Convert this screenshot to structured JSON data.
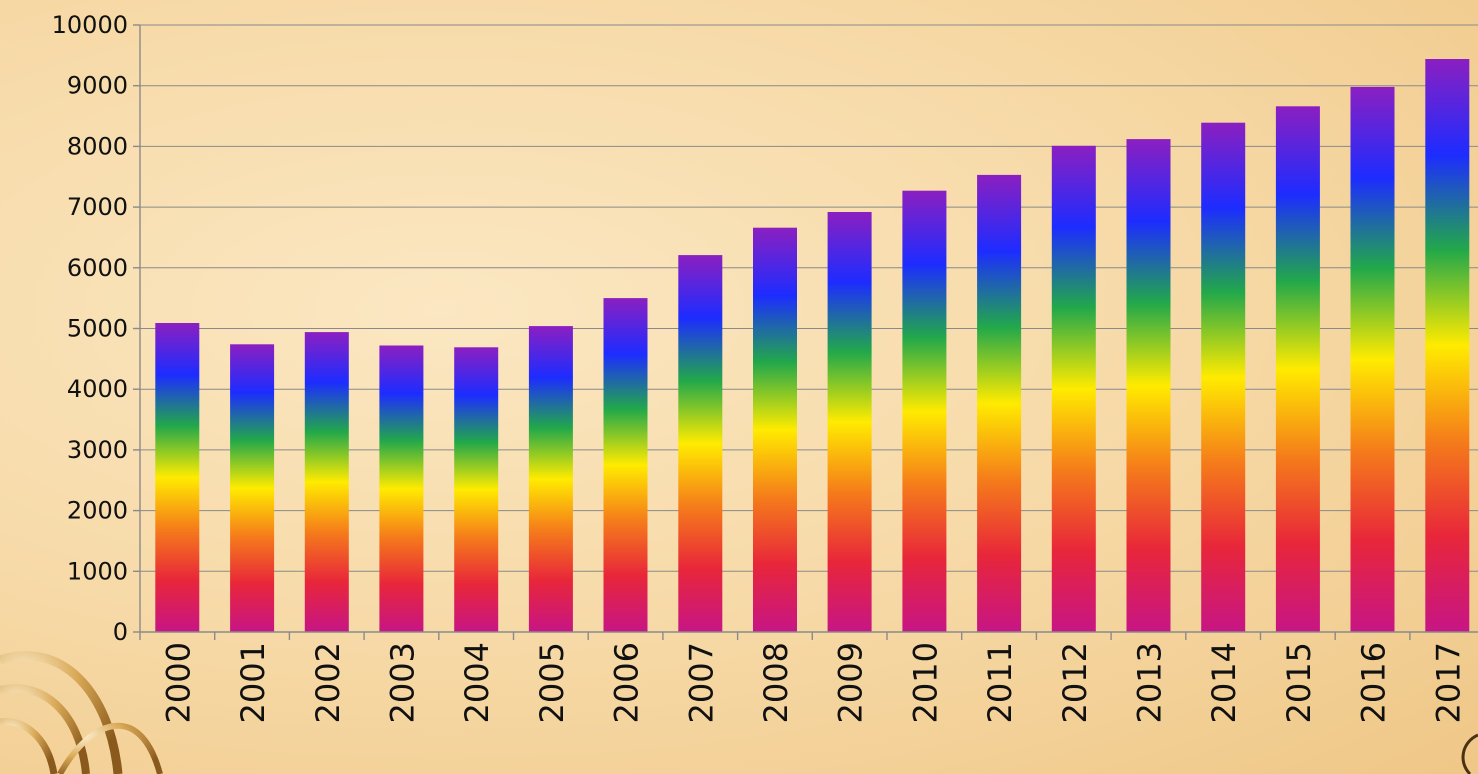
{
  "chart_data": {
    "type": "bar",
    "title": "",
    "xlabel": "",
    "ylabel": "",
    "categories": [
      "2000",
      "2001",
      "2002",
      "2003",
      "2004",
      "2005",
      "2006",
      "2007",
      "2008",
      "2009",
      "2010",
      "2011",
      "2012",
      "2013",
      "2014",
      "2015",
      "2016",
      "2017"
    ],
    "values": [
      5090,
      4740,
      4940,
      4720,
      4690,
      5040,
      5500,
      6210,
      6660,
      6920,
      7270,
      7530,
      8010,
      8120,
      8390,
      8660,
      8980,
      9440
    ],
    "ylim": [
      0,
      10000
    ],
    "yticks": [
      0,
      1000,
      2000,
      3000,
      4000,
      5000,
      6000,
      7000,
      8000,
      9000,
      10000
    ],
    "grid": true,
    "legend": "none",
    "bar_gradient": [
      "#c71585",
      "#e8263a",
      "#f57c1a",
      "#ffeb00",
      "#22a84a",
      "#1d2cff",
      "#8b1fc1"
    ]
  }
}
